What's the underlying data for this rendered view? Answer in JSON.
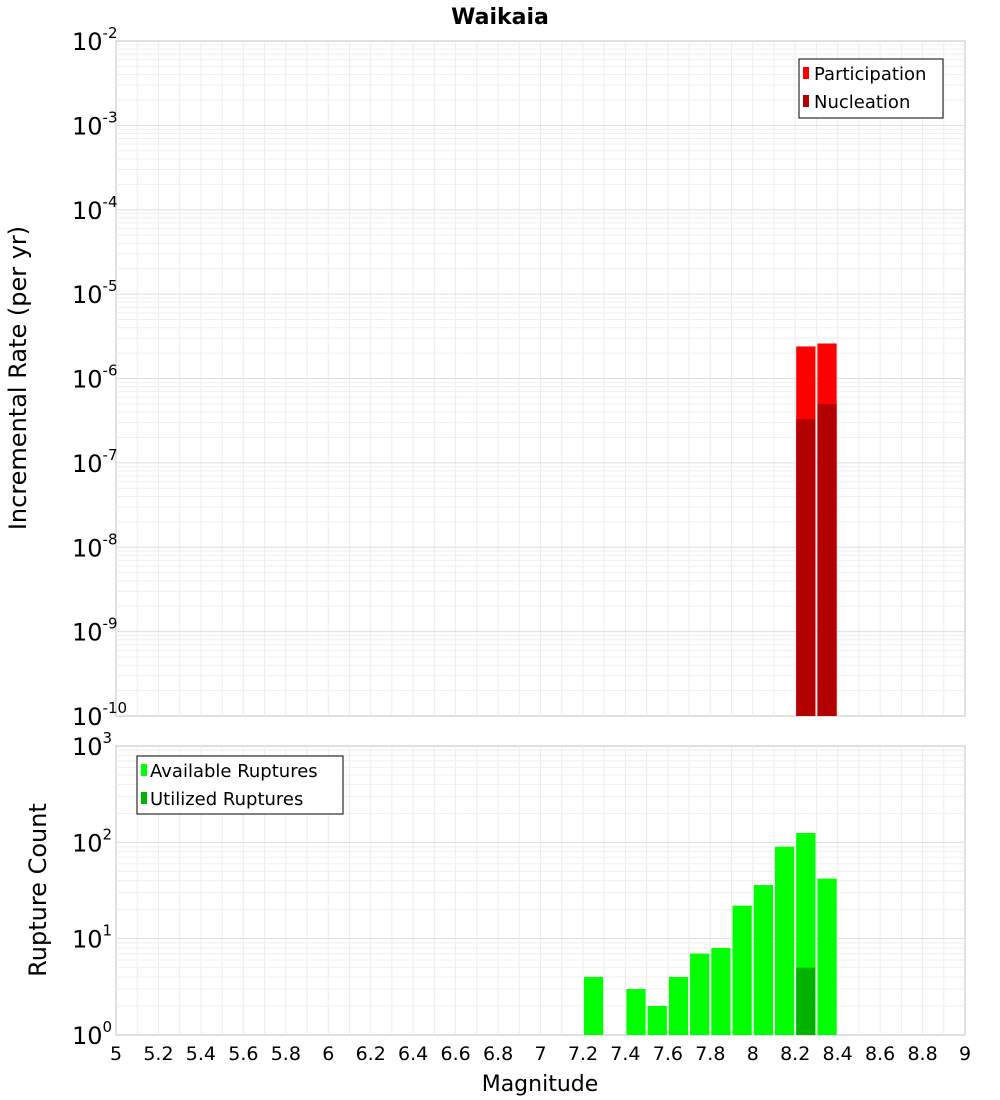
{
  "chart_data": {
    "title": "Waikaia",
    "xlabel": "Magnitude",
    "xlim": [
      5,
      9
    ],
    "xticks": [
      "5",
      "5.2",
      "5.4",
      "5.6",
      "5.8",
      "6",
      "6.2",
      "6.4",
      "6.6",
      "6.8",
      "7",
      "7.2",
      "7.4",
      "7.6",
      "7.8",
      "8",
      "8.2",
      "8.4",
      "8.6",
      "8.8",
      "9"
    ],
    "bin_width": 0.1,
    "panels": [
      {
        "type": "bar",
        "yscale": "log",
        "ylabel": "Incremental Rate (per yr)",
        "ylim_exp": [
          -10,
          -2
        ],
        "legend_position": "top-right",
        "series": [
          {
            "name": "Participation",
            "color": "#ff0000",
            "x": [
              8.25,
              8.35
            ],
            "values": [
              2.4e-06,
              2.6e-06
            ]
          },
          {
            "name": "Nucleation",
            "color": "#b30000",
            "x": [
              8.25,
              8.35
            ],
            "values": [
              3.3e-07,
              5e-07
            ]
          }
        ]
      },
      {
        "type": "bar",
        "yscale": "log",
        "ylabel": "Rupture Count",
        "ylim_exp": [
          0,
          3
        ],
        "legend_position": "top-left",
        "series": [
          {
            "name": "Available Ruptures",
            "color": "#00ff00",
            "x": [
              7.25,
              7.45,
              7.55,
              7.65,
              7.75,
              7.85,
              7.95,
              8.05,
              8.15,
              8.25,
              8.35
            ],
            "values": [
              4,
              3,
              2,
              4,
              7,
              8,
              22,
              36,
              90,
              125,
              42
            ]
          },
          {
            "name": "Utilized Ruptures",
            "color": "#00b300",
            "x": [
              8.25,
              8.35
            ],
            "values": [
              5,
              1
            ]
          }
        ]
      }
    ]
  }
}
